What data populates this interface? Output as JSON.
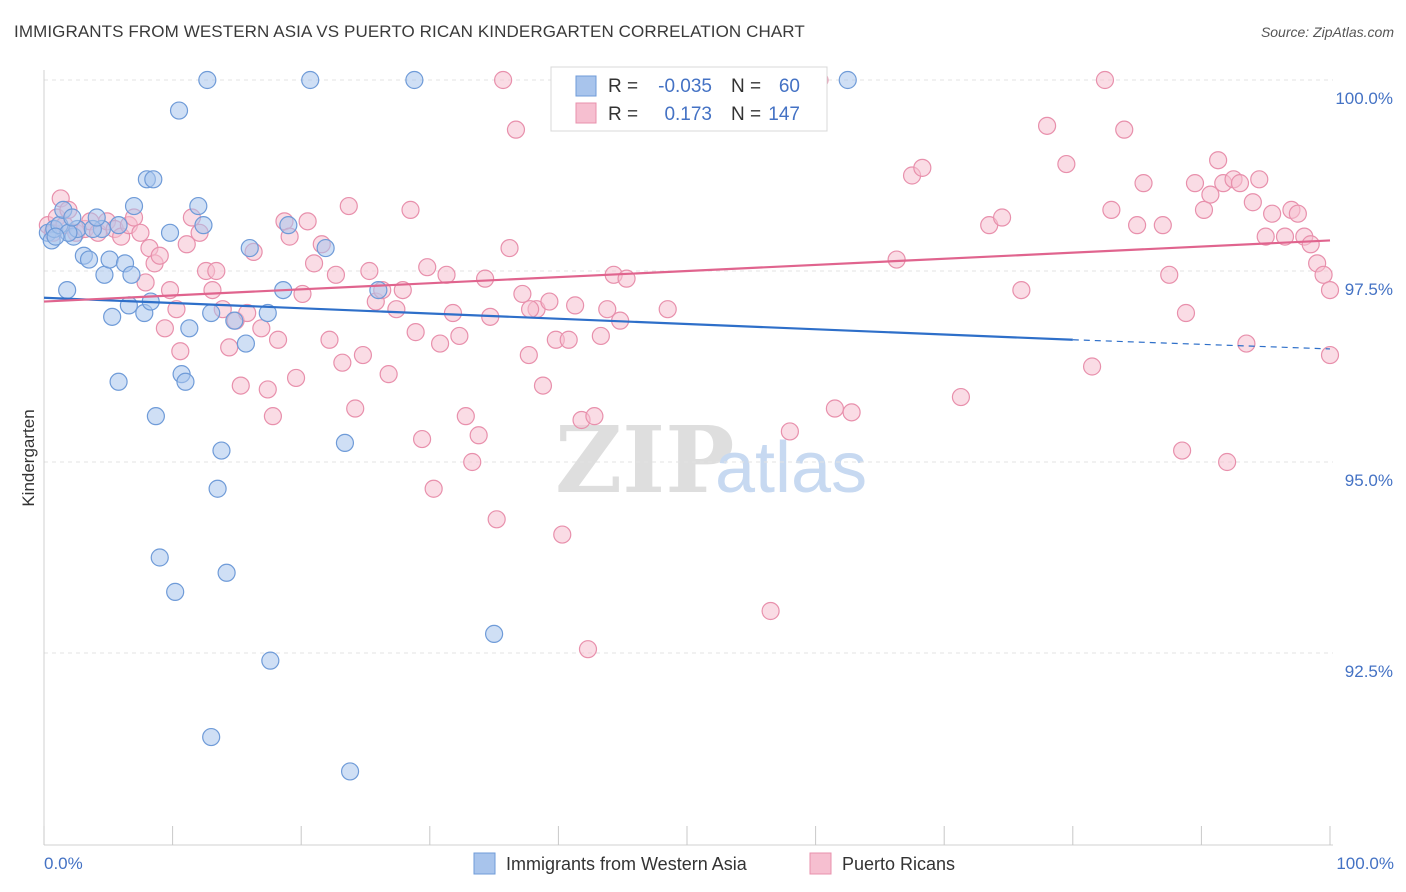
{
  "header": {
    "title": "IMMIGRANTS FROM WESTERN ASIA VS PUERTO RICAN KINDERGARTEN CORRELATION CHART",
    "source": "Source: ZipAtlas.com"
  },
  "watermark": {
    "part1": "ZIP",
    "part2": "atlas"
  },
  "colors": {
    "blue_fill": "#a8c4ec",
    "blue_stroke": "#6f9bd8",
    "blue_line": "#2e6fc9",
    "pink_fill": "#f6bfd0",
    "pink_stroke": "#e890ac",
    "pink_line": "#e0648e",
    "tick_label": "#4472c4",
    "grid": "#e3e3e3"
  },
  "legend": {
    "rows": [
      {
        "series": "blue",
        "r_label": "R =",
        "r_value": "-0.035",
        "n_label": "N =",
        "n_value": "60"
      },
      {
        "series": "pink",
        "r_label": "R =",
        "r_value": "0.173",
        "n_label": "N =",
        "n_value": "147"
      }
    ],
    "bottom": [
      {
        "series": "blue",
        "label": "Immigrants from Western Asia"
      },
      {
        "series": "pink",
        "label": "Puerto Ricans"
      }
    ]
  },
  "chart_data": {
    "type": "scatter",
    "title": "IMMIGRANTS FROM WESTERN ASIA VS PUERTO RICAN KINDERGARTEN CORRELATION CHART",
    "xlabel": "",
    "ylabel": "Kindergarten",
    "xlim": [
      0,
      100
    ],
    "ylim": [
      90.5,
      100.3
    ],
    "x_tick_labels": [
      "0.0%",
      "100.0%"
    ],
    "y_ticks": [
      92.5,
      95.0,
      97.5,
      100.0
    ],
    "y_tick_labels": [
      "92.5%",
      "95.0%",
      "97.5%",
      "100.0%"
    ],
    "grid": "horizontal dashed",
    "legend_placement": "top-center",
    "series": [
      {
        "name": "Immigrants from Western Asia",
        "color": "blue",
        "r": -0.035,
        "n": 60,
        "trend": {
          "x0": 0,
          "y0": 97.15,
          "x1": 80,
          "y1": 96.6,
          "dash_to": 100,
          "dash_y": 96.48
        },
        "points": [
          [
            0.3,
            98.0
          ],
          [
            0.6,
            97.9
          ],
          [
            0.8,
            98.05
          ],
          [
            1.2,
            98.1
          ],
          [
            1.5,
            98.3
          ],
          [
            1.8,
            97.25
          ],
          [
            2.3,
            97.95
          ],
          [
            2.6,
            98.05
          ],
          [
            3.1,
            97.7
          ],
          [
            3.5,
            97.65
          ],
          [
            4.5,
            98.05
          ],
          [
            4.7,
            97.45
          ],
          [
            5.1,
            97.65
          ],
          [
            5.3,
            96.9
          ],
          [
            5.8,
            96.05
          ],
          [
            6.3,
            97.6
          ],
          [
            6.6,
            97.05
          ],
          [
            6.8,
            97.45
          ],
          [
            7.0,
            98.35
          ],
          [
            7.8,
            96.95
          ],
          [
            8.0,
            98.7
          ],
          [
            8.3,
            97.1
          ],
          [
            8.5,
            98.7
          ],
          [
            8.7,
            95.6
          ],
          [
            9.0,
            93.75
          ],
          [
            9.8,
            98.0
          ],
          [
            10.2,
            93.3
          ],
          [
            10.5,
            99.6
          ],
          [
            10.7,
            96.15
          ],
          [
            11.0,
            96.05
          ],
          [
            11.3,
            96.75
          ],
          [
            12.0,
            98.35
          ],
          [
            12.4,
            98.1
          ],
          [
            12.7,
            100.0
          ],
          [
            13.0,
            96.95
          ],
          [
            13.0,
            91.4
          ],
          [
            13.5,
            94.65
          ],
          [
            13.8,
            95.15
          ],
          [
            14.2,
            93.55
          ],
          [
            14.8,
            96.85
          ],
          [
            15.7,
            96.55
          ],
          [
            16.0,
            97.8
          ],
          [
            17.4,
            96.95
          ],
          [
            17.6,
            92.4
          ],
          [
            18.6,
            97.25
          ],
          [
            19.0,
            98.1
          ],
          [
            20.7,
            100.0
          ],
          [
            21.9,
            97.8
          ],
          [
            23.4,
            95.25
          ],
          [
            23.8,
            90.95
          ],
          [
            26.0,
            97.25
          ],
          [
            28.8,
            100.0
          ],
          [
            35.0,
            92.75
          ],
          [
            62.5,
            100.0
          ],
          [
            1.9,
            98.0
          ],
          [
            2.2,
            98.2
          ],
          [
            0.9,
            97.95
          ],
          [
            3.8,
            98.05
          ],
          [
            4.1,
            98.2
          ],
          [
            5.8,
            98.1
          ]
        ]
      },
      {
        "name": "Puerto Ricans",
        "color": "pink",
        "r": 0.173,
        "n": 147,
        "trend": {
          "x0": 0,
          "y0": 97.1,
          "x1": 100,
          "y1": 97.9
        },
        "points": [
          [
            0.3,
            98.1
          ],
          [
            0.7,
            98.0
          ],
          [
            1.0,
            98.2
          ],
          [
            1.3,
            98.45
          ],
          [
            1.6,
            98.1
          ],
          [
            1.9,
            98.3
          ],
          [
            2.5,
            98.0
          ],
          [
            3.2,
            98.05
          ],
          [
            3.6,
            98.15
          ],
          [
            4.2,
            98.0
          ],
          [
            4.9,
            98.15
          ],
          [
            5.5,
            98.05
          ],
          [
            6.0,
            97.95
          ],
          [
            6.6,
            98.1
          ],
          [
            7.0,
            98.2
          ],
          [
            7.5,
            98.0
          ],
          [
            7.9,
            97.35
          ],
          [
            8.2,
            97.8
          ],
          [
            8.6,
            97.6
          ],
          [
            9.0,
            97.7
          ],
          [
            9.4,
            96.75
          ],
          [
            9.8,
            97.25
          ],
          [
            10.3,
            97.0
          ],
          [
            10.6,
            96.45
          ],
          [
            11.1,
            97.85
          ],
          [
            11.5,
            98.2
          ],
          [
            12.1,
            98.0
          ],
          [
            12.6,
            97.5
          ],
          [
            13.1,
            97.25
          ],
          [
            13.4,
            97.5
          ],
          [
            13.9,
            97.0
          ],
          [
            14.4,
            96.5
          ],
          [
            14.9,
            96.85
          ],
          [
            15.3,
            96.0
          ],
          [
            15.8,
            96.95
          ],
          [
            16.3,
            97.75
          ],
          [
            16.9,
            96.75
          ],
          [
            17.4,
            95.95
          ],
          [
            17.8,
            95.6
          ],
          [
            18.2,
            96.6
          ],
          [
            18.7,
            98.15
          ],
          [
            19.1,
            97.95
          ],
          [
            19.6,
            96.1
          ],
          [
            20.1,
            97.2
          ],
          [
            20.5,
            98.15
          ],
          [
            21.0,
            97.6
          ],
          [
            21.6,
            97.85
          ],
          [
            22.2,
            96.6
          ],
          [
            22.7,
            97.45
          ],
          [
            23.2,
            96.3
          ],
          [
            23.7,
            98.35
          ],
          [
            24.2,
            95.7
          ],
          [
            24.8,
            96.4
          ],
          [
            25.3,
            97.5
          ],
          [
            25.8,
            97.1
          ],
          [
            26.3,
            97.25
          ],
          [
            26.8,
            96.15
          ],
          [
            27.4,
            97.0
          ],
          [
            27.9,
            97.25
          ],
          [
            28.5,
            98.3
          ],
          [
            28.9,
            96.7
          ],
          [
            29.4,
            95.3
          ],
          [
            29.8,
            97.55
          ],
          [
            30.3,
            94.65
          ],
          [
            30.8,
            96.55
          ],
          [
            31.3,
            97.45
          ],
          [
            31.8,
            96.95
          ],
          [
            32.3,
            96.65
          ],
          [
            32.8,
            95.6
          ],
          [
            33.3,
            95.0
          ],
          [
            33.8,
            95.35
          ],
          [
            34.3,
            97.4
          ],
          [
            34.7,
            96.9
          ],
          [
            35.2,
            94.25
          ],
          [
            35.7,
            100.0
          ],
          [
            36.2,
            97.8
          ],
          [
            36.7,
            99.35
          ],
          [
            37.2,
            97.2
          ],
          [
            37.7,
            96.4
          ],
          [
            38.3,
            97.0
          ],
          [
            38.8,
            96.0
          ],
          [
            39.3,
            97.1
          ],
          [
            39.8,
            96.6
          ],
          [
            40.3,
            94.05
          ],
          [
            40.8,
            96.6
          ],
          [
            41.3,
            97.05
          ],
          [
            41.8,
            95.55
          ],
          [
            42.3,
            92.55
          ],
          [
            42.8,
            95.6
          ],
          [
            43.3,
            96.65
          ],
          [
            43.8,
            97.0
          ],
          [
            44.3,
            97.45
          ],
          [
            44.8,
            96.85
          ],
          [
            45.3,
            97.4
          ],
          [
            47.0,
            100.0
          ],
          [
            48.5,
            97.0
          ],
          [
            49.5,
            100.0
          ],
          [
            51.5,
            100.0
          ],
          [
            52.0,
            100.0
          ],
          [
            56.5,
            93.05
          ],
          [
            58.0,
            95.4
          ],
          [
            60.0,
            100.0
          ],
          [
            61.5,
            95.7
          ],
          [
            62.8,
            95.65
          ],
          [
            66.3,
            97.65
          ],
          [
            67.5,
            98.75
          ],
          [
            68.3,
            98.85
          ],
          [
            71.3,
            95.85
          ],
          [
            73.5,
            98.1
          ],
          [
            74.5,
            98.2
          ],
          [
            76.0,
            97.25
          ],
          [
            78.0,
            99.4
          ],
          [
            79.5,
            98.9
          ],
          [
            81.5,
            96.25
          ],
          [
            82.5,
            100.0
          ],
          [
            83.0,
            98.3
          ],
          [
            84.0,
            99.35
          ],
          [
            85.0,
            98.1
          ],
          [
            85.5,
            98.65
          ],
          [
            87.0,
            98.1
          ],
          [
            87.5,
            97.45
          ],
          [
            88.5,
            95.15
          ],
          [
            88.8,
            96.95
          ],
          [
            89.5,
            98.65
          ],
          [
            90.2,
            98.3
          ],
          [
            90.7,
            98.5
          ],
          [
            91.3,
            98.95
          ],
          [
            91.7,
            98.65
          ],
          [
            92.0,
            95.0
          ],
          [
            92.5,
            98.7
          ],
          [
            93.0,
            98.65
          ],
          [
            93.5,
            96.55
          ],
          [
            94.0,
            98.4
          ],
          [
            94.5,
            98.7
          ],
          [
            95.0,
            97.95
          ],
          [
            95.5,
            98.25
          ],
          [
            96.5,
            97.95
          ],
          [
            97.0,
            98.3
          ],
          [
            97.5,
            98.25
          ],
          [
            98.0,
            97.95
          ],
          [
            98.5,
            97.85
          ],
          [
            99.0,
            97.6
          ],
          [
            99.5,
            97.45
          ],
          [
            100.0,
            97.25
          ],
          [
            100.0,
            96.4
          ],
          [
            60.3,
            100.0
          ],
          [
            37.8,
            97.0
          ]
        ]
      }
    ]
  }
}
